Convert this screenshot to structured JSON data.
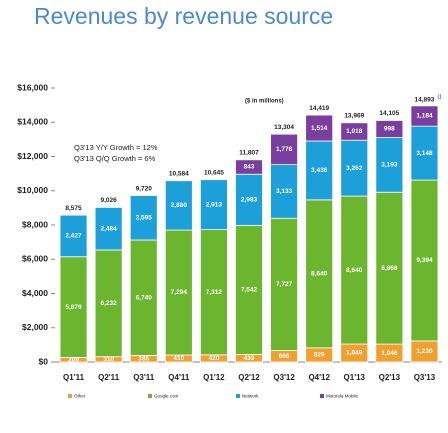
{
  "chart_data": {
    "type": "stacked-bar",
    "title": "Revenues by revenue source",
    "subtitle": "($ in millions)",
    "annotations": [
      "Q3'13 Y/Y Growth = 12%",
      "Q3'13 Q/Q Growth = 6%"
    ],
    "categories": [
      "Q1'11",
      "Q2'11",
      "Q3'11",
      "Q4'11",
      "Q1'12",
      "Q2'12",
      "Q3'12",
      "Q4'12",
      "Q1'13",
      "Q2'13",
      "Q3'13"
    ],
    "series": [
      {
        "name": "Other",
        "color": "#f0a030",
        "values": [
          269,
          310,
          385,
          410,
          420,
          439,
          666,
          829,
          1049,
          1046,
          1230
        ],
        "value_labels": [
          "269",
          "310",
          "385",
          "410",
          "420",
          "439",
          "666",
          "829",
          "1,049",
          "1,046",
          "1,230"
        ]
      },
      {
        "name": "Google.com",
        "color": "#6cb52f",
        "values": [
          5879,
          6232,
          6740,
          7294,
          7312,
          7542,
          7727,
          8640,
          8640,
          8868,
          9394
        ],
        "value_labels": [
          "5,879",
          "6,232",
          "6,740",
          "7,294",
          "7,312",
          "7,542",
          "7,727",
          "8,640",
          "8,640",
          "8,868",
          "9,394"
        ]
      },
      {
        "name": "Network",
        "color": "#1d9fd9",
        "values": [
          2427,
          2484,
          2595,
          2880,
          2913,
          2983,
          3133,
          3436,
          3262,
          3193,
          3148
        ],
        "value_labels": [
          "2,427",
          "2,484",
          "2,595",
          "2,880",
          "2,913",
          "2,983",
          "3,133",
          "3,436",
          "3,262",
          "3,193",
          "3,148"
        ]
      },
      {
        "name": "Motorola Mobile",
        "color": "#7a3f9e",
        "values": [
          null,
          null,
          null,
          null,
          null,
          843,
          1778,
          1514,
          1018,
          998,
          1184
        ],
        "value_labels": [
          null,
          null,
          null,
          null,
          null,
          "843",
          "1,778",
          "1,514",
          "1,018",
          "998",
          "1,184"
        ]
      }
    ],
    "totals": [
      8575,
      9026,
      9720,
      10584,
      10645,
      11807,
      13304,
      14419,
      13969,
      14105,
      14893
    ],
    "total_labels": [
      "8,575",
      "9,026",
      "9,720",
      "10,584",
      "10,645",
      "11,807",
      "13,304",
      "14,419",
      "13,969",
      "14,105",
      "14,893"
    ],
    "total_footnote": {
      "index": 10,
      "text": "(1"
    },
    "ylim": [
      0,
      16000
    ],
    "yticks": [
      {
        "value": 0,
        "label": "$0"
      },
      {
        "value": 2000,
        "label": "$2,000"
      },
      {
        "value": 4000,
        "label": "$4,000"
      },
      {
        "value": 6000,
        "label": "$6,000"
      },
      {
        "value": 8000,
        "label": "$8,000"
      },
      {
        "value": 10000,
        "label": "$10,000"
      },
      {
        "value": 12000,
        "label": "$12,000"
      },
      {
        "value": 14000,
        "label": "$14,000"
      },
      {
        "value": 16000,
        "label": "$16,000"
      }
    ],
    "grid": false
  }
}
